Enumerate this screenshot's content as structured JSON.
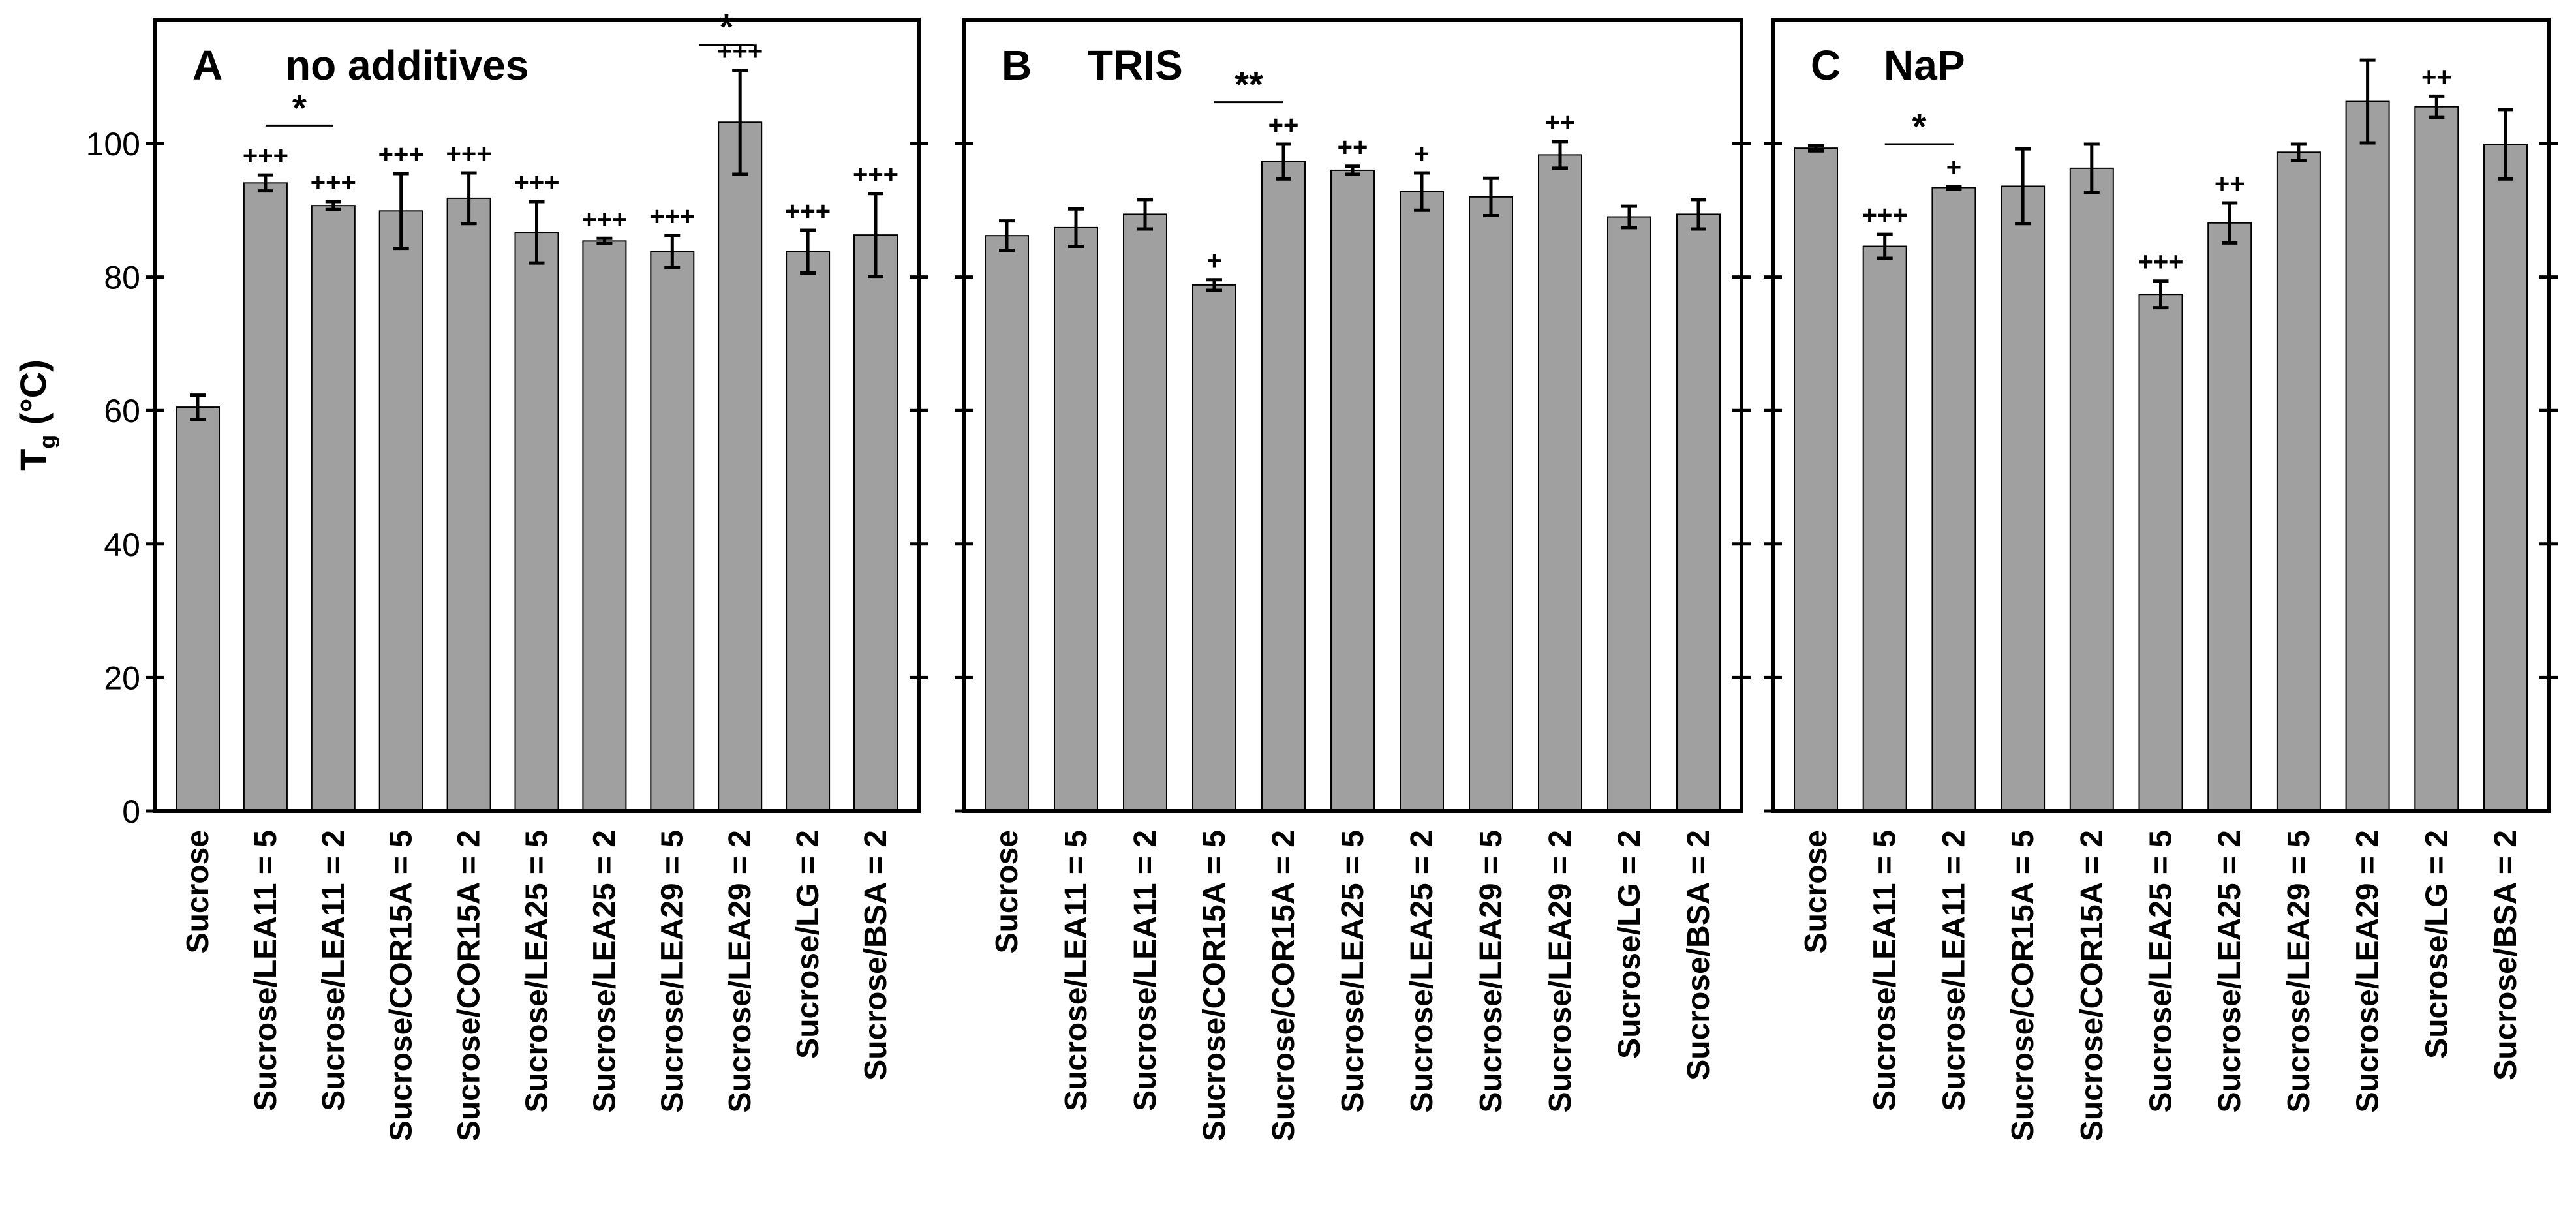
{
  "chart_data": {
    "type": "bar",
    "ylabel_main": "T",
    "ylabel_sub": "g",
    "ylabel_unit": " (°C)",
    "ylim": [
      0,
      120
    ],
    "yticks": [
      "0",
      "20",
      "40",
      "60",
      "80",
      "100"
    ],
    "bar_color": "#a0a0a0",
    "panels": [
      {
        "letter": "A",
        "title": "no additives",
        "categories": [
          "Sucrose",
          "Sucrose/LEA11 = 5",
          "Sucrose/LEA11 = 2",
          "Sucrose/COR15A = 5",
          "Sucrose/COR15A = 2",
          "Sucrose/LEA25 = 5",
          "Sucrose/LEA25 = 2",
          "Sucrose/LEA29 = 5",
          "Sucrose/LEA29 = 2",
          "Sucrose/LG = 2",
          "Sucrose/BSA = 2"
        ],
        "values": [
          60.5,
          94.1,
          90.7,
          89.9,
          91.8,
          86.7,
          85.4,
          83.8,
          103.2,
          83.8,
          86.3
        ],
        "errors": [
          1.8,
          1.2,
          0.6,
          5.6,
          3.8,
          4.6,
          0.4,
          2.4,
          7.8,
          3.2,
          6.2
        ],
        "marks": [
          "",
          "+++",
          "+++",
          "+++",
          "+++",
          "+++",
          "+++",
          "+++",
          "+++",
          "+++",
          "+++"
        ],
        "brackets": [
          {
            "from": 1,
            "to": 2,
            "label": "*",
            "y": 102.7
          },
          {
            "from": 7.4,
            "to": 8.2,
            "label": "*",
            "y": 114.8
          }
        ]
      },
      {
        "letter": "B",
        "title": "TRIS",
        "categories": [
          "Sucrose",
          "Sucrose/LEA11 = 5",
          "Sucrose/LEA11 = 2",
          "Sucrose/COR15A = 5",
          "Sucrose/COR15A = 2",
          "Sucrose/LEA25 = 5",
          "Sucrose/LEA25 = 2",
          "Sucrose/LEA29 = 5",
          "Sucrose/LEA29 = 2",
          "Sucrose/LG = 2",
          "Sucrose/BSA = 2"
        ],
        "values": [
          86.2,
          87.4,
          89.4,
          78.8,
          97.3,
          96.0,
          92.8,
          92.0,
          98.3,
          89.0,
          89.4
        ],
        "errors": [
          2.2,
          2.8,
          2.2,
          0.8,
          2.6,
          0.6,
          2.8,
          2.8,
          2.0,
          1.6,
          2.2
        ],
        "marks": [
          "",
          "",
          "",
          "+",
          "++",
          "++",
          "+",
          "",
          "++",
          "",
          ""
        ],
        "brackets": [
          {
            "from": 3,
            "to": 4,
            "label": "**",
            "y": 106.2
          }
        ]
      },
      {
        "letter": "C",
        "title": "NaP",
        "categories": [
          "Sucrose",
          "Sucrose/LEA11 = 5",
          "Sucrose/LEA11 = 2",
          "Sucrose/COR15A = 5",
          "Sucrose/COR15A = 2",
          "Sucrose/LEA25 = 5",
          "Sucrose/LEA25 = 2",
          "Sucrose/LEA29 = 5",
          "Sucrose/LEA29 = 2",
          "Sucrose/LG = 2",
          "Sucrose/BSA = 2"
        ],
        "values": [
          99.3,
          84.6,
          93.4,
          93.6,
          96.3,
          77.4,
          88.1,
          98.7,
          106.3,
          105.5,
          99.9
        ],
        "errors": [
          0.4,
          1.8,
          0.2,
          5.6,
          3.6,
          2.0,
          3.0,
          1.2,
          6.2,
          1.6,
          5.2
        ],
        "marks": [
          "",
          "+++",
          "+",
          "",
          "",
          "+++",
          "++",
          "",
          "",
          "++",
          ""
        ],
        "brackets": [
          {
            "from": 1,
            "to": 2,
            "label": "*",
            "y": 99.9
          }
        ]
      }
    ]
  }
}
